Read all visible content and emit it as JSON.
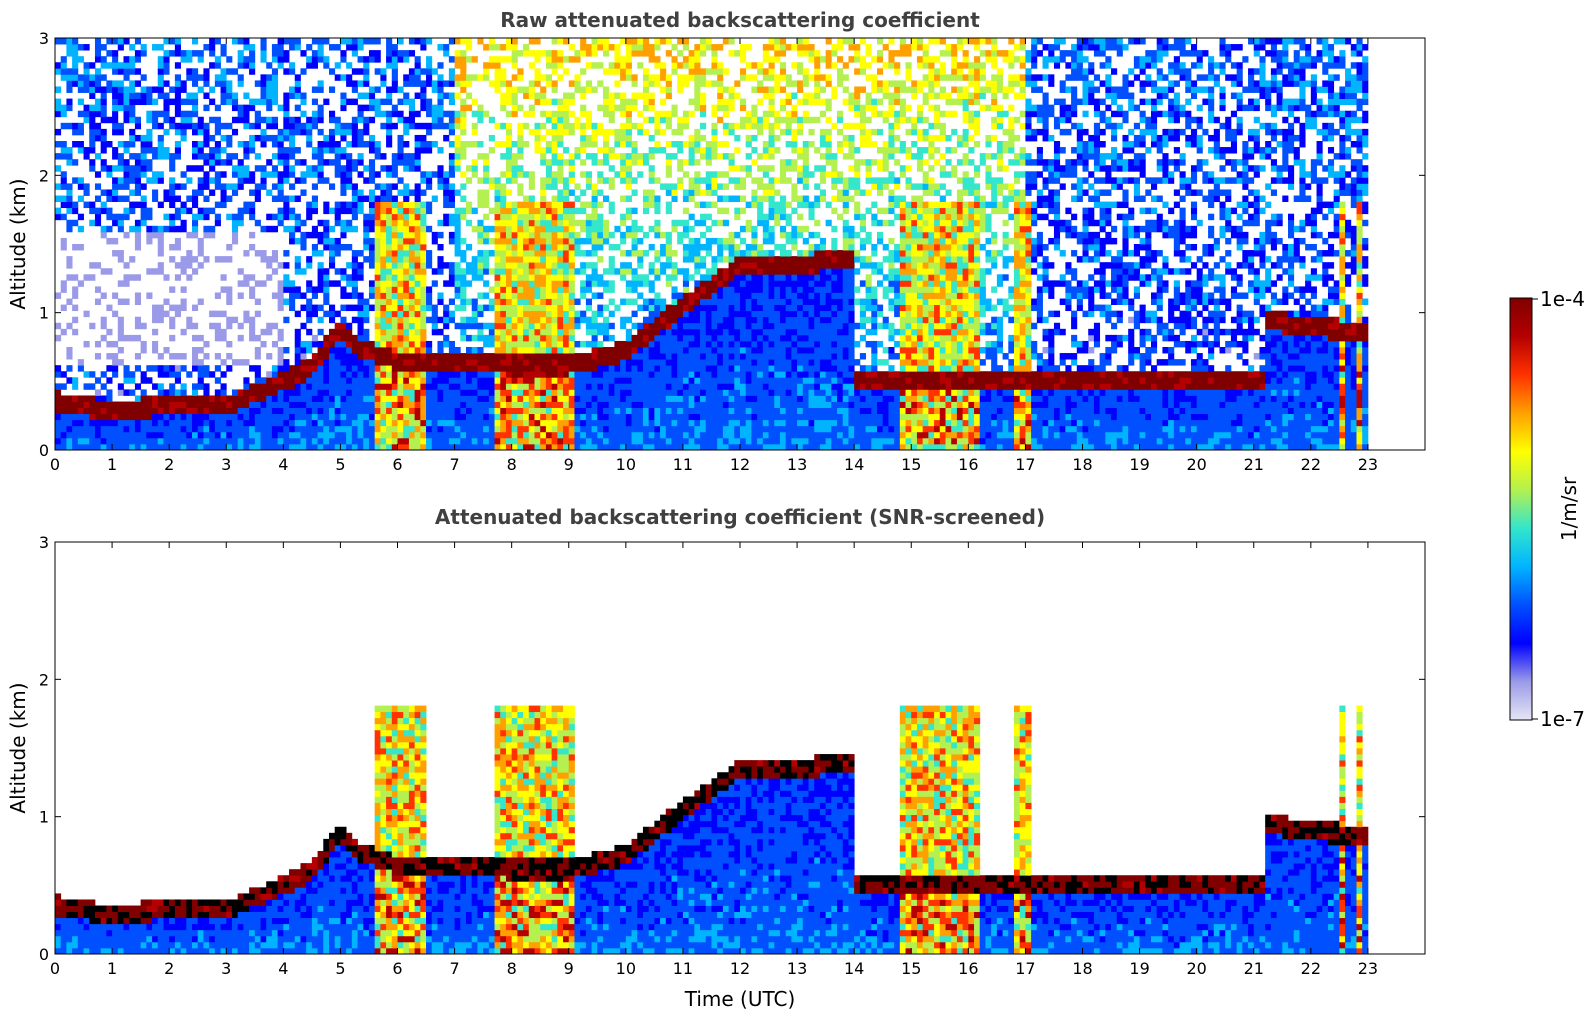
{
  "chart_data": [
    {
      "type": "heatmap",
      "title": "Raw attenuated backscattering coefficient",
      "xlabel": "",
      "ylabel": "Altitude (km)",
      "xlim": [
        0,
        24
      ],
      "ylim": [
        0,
        3
      ],
      "x_ticks": [
        "0",
        "1",
        "2",
        "3",
        "4",
        "5",
        "6",
        "7",
        "8",
        "9",
        "10",
        "11",
        "12",
        "13",
        "14",
        "15",
        "16",
        "17",
        "18",
        "19",
        "20",
        "21",
        "22",
        "23"
      ],
      "y_ticks": [
        "0",
        "1",
        "2",
        "3"
      ],
      "data_time_range_utc": [
        0,
        23
      ],
      "features": [
        {
          "label": "boundary layer top",
          "points": [
            [
              0,
              0.36
            ],
            [
              1,
              0.28
            ],
            [
              2,
              0.33
            ],
            [
              3,
              0.32
            ],
            [
              4,
              0.5
            ],
            [
              4.5,
              0.6
            ],
            [
              5,
              0.9
            ],
            [
              5.3,
              0.75
            ],
            [
              6,
              0.65
            ],
            [
              7,
              0.63
            ],
            [
              8,
              0.62
            ],
            [
              9,
              0.62
            ],
            [
              10,
              0.72
            ],
            [
              11,
              1.05
            ],
            [
              12,
              1.35
            ],
            [
              13,
              1.35
            ],
            [
              14,
              1.4
            ]
          ]
        },
        {
          "label": "residual layer top",
          "points": [
            [
              21.2,
              0.95
            ],
            [
              22,
              0.9
            ],
            [
              22.9,
              0.86
            ]
          ]
        }
      ],
      "high_backscatter_columns_utc": [
        [
          5.6,
          6.5
        ],
        [
          7.7,
          9.1
        ],
        [
          14.8,
          16.2
        ],
        [
          16.8,
          17.1
        ],
        [
          22.5,
          22.6
        ],
        [
          22.8,
          22.9
        ]
      ],
      "grid": false
    },
    {
      "type": "heatmap",
      "title": "Attenuated backscattering coefficient (SNR-screened)",
      "xlabel": "Time (UTC)",
      "ylabel": "Altitude (km)",
      "xlim": [
        0,
        24
      ],
      "ylim": [
        0,
        3
      ],
      "x_ticks": [
        "0",
        "1",
        "2",
        "3",
        "4",
        "5",
        "6",
        "7",
        "8",
        "9",
        "10",
        "11",
        "12",
        "13",
        "14",
        "15",
        "16",
        "17",
        "18",
        "19",
        "20",
        "21",
        "22",
        "23"
      ],
      "y_ticks": [
        "0",
        "1",
        "2",
        "3"
      ],
      "data_time_range_utc": [
        0,
        23
      ],
      "grid": false
    }
  ],
  "colorbar": {
    "max_label": "1e-4",
    "min_label": "1e-7",
    "unit_label": "1/m/sr",
    "scale": "log",
    "colors": [
      "#e6e6f5",
      "#9a9ae8",
      "#0000ff",
      "#0050ff",
      "#00b4ff",
      "#33e6cc",
      "#b4f050",
      "#ffff00",
      "#ffa000",
      "#ff3200",
      "#b40000",
      "#800000"
    ]
  }
}
